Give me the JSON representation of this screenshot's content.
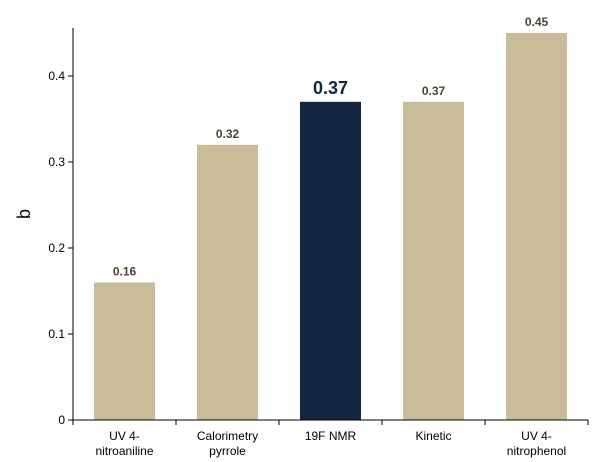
{
  "chart_data": {
    "type": "bar",
    "categories": [
      [
        "UV 4-",
        "nitroaniline"
      ],
      [
        "Calorimetry",
        "pyrrole"
      ],
      [
        "19F NMR"
      ],
      [
        "Kinetic"
      ],
      [
        "UV 4-",
        "nitrophenol"
      ]
    ],
    "values": [
      0.16,
      0.32,
      0.37,
      0.37,
      0.45
    ],
    "data_labels": [
      "0.16",
      "0.32",
      "0.37",
      "0.37",
      "0.45"
    ],
    "highlight_index": 2,
    "xlabel": "",
    "ylabel": "b",
    "ylim": [
      0,
      0.45
    ],
    "yticks": [
      0,
      0.1,
      0.2,
      0.3,
      0.4
    ],
    "ytick_labels": [
      "0",
      "0.1",
      "0.2",
      "0.3",
      "0.4"
    ],
    "grid": false,
    "legend": "none",
    "colors": {
      "bar": "#c8bd98",
      "highlight_bar": "#13263f",
      "label": "#4a4430",
      "highlight_label": "#13263f",
      "axis": "#000000"
    }
  }
}
